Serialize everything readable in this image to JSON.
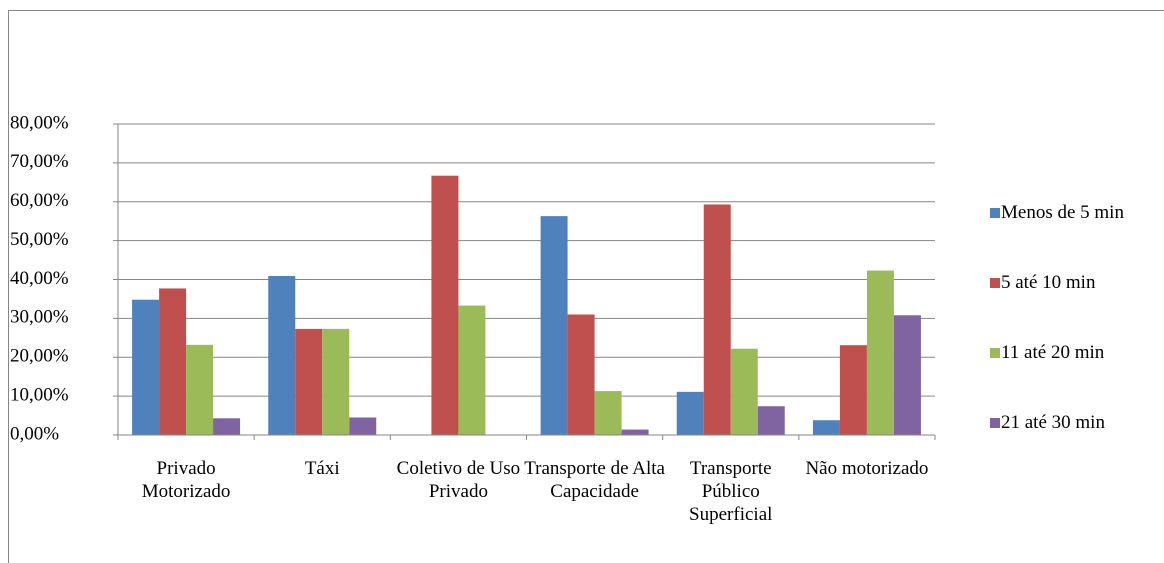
{
  "chart_data": {
    "type": "bar",
    "categories": [
      "Privado Motorizado",
      "Táxi",
      "Coletivo de Uso Privado",
      "Transporte de Alta Capacidade",
      "Transporte Público Superficial",
      "Não motorizado"
    ],
    "series": [
      {
        "name": "Menos de 5 min",
        "color": "#4f81bd",
        "values": [
          34.8,
          40.9,
          0,
          56.3,
          11.1,
          3.8
        ]
      },
      {
        "name": "5 até 10 min",
        "color": "#c0504d",
        "values": [
          37.7,
          27.3,
          66.7,
          31.0,
          59.3,
          23.1
        ]
      },
      {
        "name": "11 até 20 min",
        "color": "#9bbb59",
        "values": [
          23.2,
          27.3,
          33.3,
          11.3,
          22.2,
          42.3
        ]
      },
      {
        "name": "21 até 30 min",
        "color": "#8064a2",
        "values": [
          4.3,
          4.5,
          0,
          1.4,
          7.4,
          30.8
        ]
      }
    ],
    "ylim": [
      0,
      80
    ],
    "yticks": [
      {
        "value": 0,
        "label": "0,00%"
      },
      {
        "value": 10,
        "label": "10,00%"
      },
      {
        "value": 20,
        "label": "20,00%"
      },
      {
        "value": 30,
        "label": "30,00%"
      },
      {
        "value": 40,
        "label": "40,00%"
      },
      {
        "value": 50,
        "label": "50,00%"
      },
      {
        "value": 60,
        "label": "60,00%"
      },
      {
        "value": 70,
        "label": "70,00%"
      },
      {
        "value": 80,
        "label": "80,00%"
      }
    ],
    "grid": true,
    "legend": "right"
  }
}
